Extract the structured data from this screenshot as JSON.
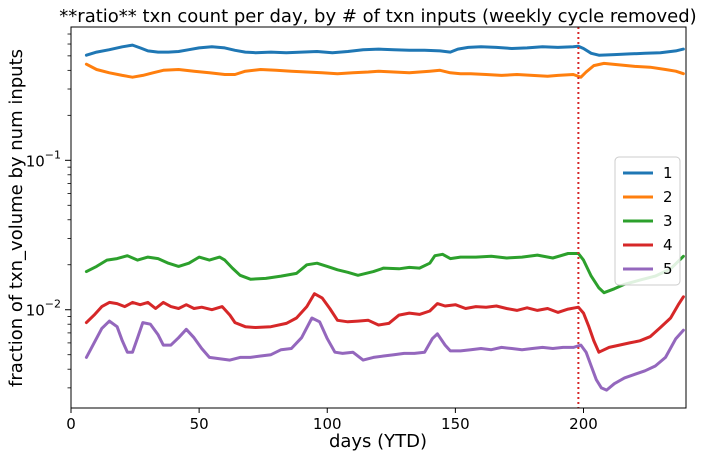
{
  "chart_data": {
    "type": "line",
    "title": "**ratio** txn count per day, by # of txn inputs (weekly cycle removed)",
    "xlabel": "days (YTD)",
    "ylabel": "fraction of txn_volume by num inputs",
    "xlim": [
      0,
      240
    ],
    "ylim": [
      0.0022,
      0.78
    ],
    "yscale": "log",
    "xticks": [
      0,
      50,
      100,
      150,
      200
    ],
    "xtick_labels": [
      "0",
      "50",
      "100",
      "150",
      "200"
    ],
    "yticks": [
      0.01,
      0.1
    ],
    "ytick_labels": [
      {
        "base": "10",
        "exp": "−2"
      },
      {
        "base": "10",
        "exp": "−1"
      }
    ],
    "grid": false,
    "legend_position": "right",
    "vline": {
      "x": 198,
      "color": "#d62728",
      "style": "dotted"
    },
    "series": [
      {
        "name": "1",
        "color": "#1f77b4",
        "points": [
          [
            6,
            0.505
          ],
          [
            10,
            0.53
          ],
          [
            15,
            0.55
          ],
          [
            20,
            0.575
          ],
          [
            24,
            0.59
          ],
          [
            27,
            0.565
          ],
          [
            30,
            0.54
          ],
          [
            34,
            0.53
          ],
          [
            38,
            0.53
          ],
          [
            42,
            0.535
          ],
          [
            46,
            0.55
          ],
          [
            50,
            0.565
          ],
          [
            55,
            0.575
          ],
          [
            60,
            0.565
          ],
          [
            64,
            0.545
          ],
          [
            68,
            0.53
          ],
          [
            72,
            0.525
          ],
          [
            78,
            0.53
          ],
          [
            84,
            0.525
          ],
          [
            90,
            0.53
          ],
          [
            96,
            0.535
          ],
          [
            102,
            0.525
          ],
          [
            108,
            0.535
          ],
          [
            114,
            0.55
          ],
          [
            120,
            0.555
          ],
          [
            126,
            0.55
          ],
          [
            132,
            0.545
          ],
          [
            138,
            0.545
          ],
          [
            144,
            0.54
          ],
          [
            148,
            0.53
          ],
          [
            151,
            0.555
          ],
          [
            155,
            0.57
          ],
          [
            160,
            0.575
          ],
          [
            166,
            0.57
          ],
          [
            172,
            0.56
          ],
          [
            178,
            0.565
          ],
          [
            184,
            0.575
          ],
          [
            190,
            0.57
          ],
          [
            196,
            0.575
          ],
          [
            198,
            0.58
          ],
          [
            200,
            0.56
          ],
          [
            203,
            0.52
          ],
          [
            206,
            0.505
          ],
          [
            212,
            0.51
          ],
          [
            218,
            0.515
          ],
          [
            224,
            0.52
          ],
          [
            230,
            0.525
          ],
          [
            236,
            0.54
          ],
          [
            239,
            0.555
          ]
        ]
      },
      {
        "name": "2",
        "color": "#ff7f0e",
        "points": [
          [
            6,
            0.44
          ],
          [
            10,
            0.405
          ],
          [
            15,
            0.385
          ],
          [
            20,
            0.37
          ],
          [
            24,
            0.36
          ],
          [
            28,
            0.37
          ],
          [
            32,
            0.385
          ],
          [
            36,
            0.4
          ],
          [
            42,
            0.405
          ],
          [
            48,
            0.395
          ],
          [
            54,
            0.385
          ],
          [
            60,
            0.375
          ],
          [
            64,
            0.375
          ],
          [
            68,
            0.395
          ],
          [
            74,
            0.405
          ],
          [
            80,
            0.4
          ],
          [
            86,
            0.395
          ],
          [
            92,
            0.39
          ],
          [
            98,
            0.385
          ],
          [
            104,
            0.38
          ],
          [
            110,
            0.385
          ],
          [
            116,
            0.39
          ],
          [
            120,
            0.395
          ],
          [
            126,
            0.39
          ],
          [
            132,
            0.385
          ],
          [
            136,
            0.39
          ],
          [
            140,
            0.395
          ],
          [
            144,
            0.4
          ],
          [
            148,
            0.385
          ],
          [
            152,
            0.38
          ],
          [
            156,
            0.38
          ],
          [
            162,
            0.375
          ],
          [
            168,
            0.37
          ],
          [
            174,
            0.375
          ],
          [
            180,
            0.37
          ],
          [
            186,
            0.365
          ],
          [
            190,
            0.37
          ],
          [
            196,
            0.375
          ],
          [
            199,
            0.36
          ],
          [
            201,
            0.39
          ],
          [
            204,
            0.43
          ],
          [
            208,
            0.445
          ],
          [
            214,
            0.435
          ],
          [
            220,
            0.425
          ],
          [
            226,
            0.42
          ],
          [
            232,
            0.405
          ],
          [
            236,
            0.395
          ],
          [
            239,
            0.38
          ]
        ]
      },
      {
        "name": "3",
        "color": "#2ca02c",
        "points": [
          [
            6,
            0.018
          ],
          [
            10,
            0.0195
          ],
          [
            14,
            0.0215
          ],
          [
            18,
            0.022
          ],
          [
            22,
            0.023
          ],
          [
            26,
            0.0215
          ],
          [
            30,
            0.0225
          ],
          [
            34,
            0.022
          ],
          [
            38,
            0.0205
          ],
          [
            42,
            0.0195
          ],
          [
            46,
            0.0205
          ],
          [
            50,
            0.0225
          ],
          [
            54,
            0.0215
          ],
          [
            58,
            0.0225
          ],
          [
            60,
            0.0215
          ],
          [
            63,
            0.019
          ],
          [
            66,
            0.017
          ],
          [
            70,
            0.016
          ],
          [
            76,
            0.0162
          ],
          [
            82,
            0.0168
          ],
          [
            88,
            0.0175
          ],
          [
            92,
            0.02
          ],
          [
            96,
            0.0205
          ],
          [
            100,
            0.0195
          ],
          [
            104,
            0.0185
          ],
          [
            108,
            0.0178
          ],
          [
            112,
            0.017
          ],
          [
            118,
            0.018
          ],
          [
            122,
            0.019
          ],
          [
            128,
            0.0188
          ],
          [
            132,
            0.0192
          ],
          [
            136,
            0.019
          ],
          [
            140,
            0.0205
          ],
          [
            142,
            0.023
          ],
          [
            145,
            0.0235
          ],
          [
            148,
            0.022
          ],
          [
            152,
            0.0225
          ],
          [
            158,
            0.0225
          ],
          [
            164,
            0.0228
          ],
          [
            170,
            0.0222
          ],
          [
            176,
            0.0225
          ],
          [
            182,
            0.0232
          ],
          [
            188,
            0.0222
          ],
          [
            194,
            0.0238
          ],
          [
            198,
            0.0238
          ],
          [
            200,
            0.0215
          ],
          [
            203,
            0.0168
          ],
          [
            206,
            0.014
          ],
          [
            208,
            0.013
          ],
          [
            212,
            0.0138
          ],
          [
            216,
            0.0148
          ],
          [
            222,
            0.0158
          ],
          [
            228,
            0.0168
          ],
          [
            234,
            0.0188
          ],
          [
            239,
            0.0228
          ]
        ]
      },
      {
        "name": "4",
        "color": "#d62728",
        "points": [
          [
            6,
            0.0082
          ],
          [
            9,
            0.0092
          ],
          [
            12,
            0.0105
          ],
          [
            15,
            0.0112
          ],
          [
            18,
            0.011
          ],
          [
            21,
            0.0105
          ],
          [
            24,
            0.0112
          ],
          [
            27,
            0.0108
          ],
          [
            30,
            0.0112
          ],
          [
            33,
            0.0102
          ],
          [
            36,
            0.0112
          ],
          [
            39,
            0.0105
          ],
          [
            42,
            0.0102
          ],
          [
            45,
            0.0108
          ],
          [
            48,
            0.0102
          ],
          [
            51,
            0.0104
          ],
          [
            55,
            0.01
          ],
          [
            59,
            0.0105
          ],
          [
            62,
            0.0092
          ],
          [
            64,
            0.0082
          ],
          [
            68,
            0.0077
          ],
          [
            72,
            0.0076
          ],
          [
            78,
            0.0077
          ],
          [
            84,
            0.0081
          ],
          [
            88,
            0.0088
          ],
          [
            92,
            0.0105
          ],
          [
            95,
            0.0128
          ],
          [
            98,
            0.012
          ],
          [
            101,
            0.0102
          ],
          [
            104,
            0.0085
          ],
          [
            108,
            0.0083
          ],
          [
            112,
            0.0084
          ],
          [
            116,
            0.0085
          ],
          [
            120,
            0.0079
          ],
          [
            124,
            0.0081
          ],
          [
            128,
            0.0092
          ],
          [
            132,
            0.0095
          ],
          [
            136,
            0.0093
          ],
          [
            140,
            0.0098
          ],
          [
            143,
            0.011
          ],
          [
            146,
            0.0106
          ],
          [
            150,
            0.0108
          ],
          [
            154,
            0.0102
          ],
          [
            158,
            0.0105
          ],
          [
            162,
            0.0104
          ],
          [
            166,
            0.0106
          ],
          [
            170,
            0.0102
          ],
          [
            174,
            0.0099
          ],
          [
            178,
            0.0103
          ],
          [
            182,
            0.0099
          ],
          [
            186,
            0.0102
          ],
          [
            190,
            0.0096
          ],
          [
            194,
            0.0101
          ],
          [
            198,
            0.0104
          ],
          [
            200,
            0.0095
          ],
          [
            202,
            0.0078
          ],
          [
            204,
            0.0062
          ],
          [
            206,
            0.0052
          ],
          [
            210,
            0.0056
          ],
          [
            214,
            0.0058
          ],
          [
            218,
            0.006
          ],
          [
            222,
            0.0062
          ],
          [
            226,
            0.0066
          ],
          [
            230,
            0.0076
          ],
          [
            234,
            0.0088
          ],
          [
            237,
            0.0108
          ],
          [
            239,
            0.0122
          ]
        ]
      },
      {
        "name": "5",
        "color": "#9467bd",
        "points": [
          [
            6,
            0.0048
          ],
          [
            9,
            0.006
          ],
          [
            12,
            0.0075
          ],
          [
            15,
            0.0084
          ],
          [
            18,
            0.0077
          ],
          [
            20,
            0.0062
          ],
          [
            22,
            0.0052
          ],
          [
            24,
            0.0052
          ],
          [
            26,
            0.0065
          ],
          [
            28,
            0.0082
          ],
          [
            31,
            0.008
          ],
          [
            34,
            0.0068
          ],
          [
            36,
            0.0058
          ],
          [
            39,
            0.0058
          ],
          [
            42,
            0.0065
          ],
          [
            45,
            0.0074
          ],
          [
            48,
            0.0065
          ],
          [
            51,
            0.0055
          ],
          [
            54,
            0.0048
          ],
          [
            58,
            0.0047
          ],
          [
            62,
            0.0046
          ],
          [
            66,
            0.0048
          ],
          [
            70,
            0.0048
          ],
          [
            74,
            0.0049
          ],
          [
            78,
            0.005
          ],
          [
            82,
            0.0054
          ],
          [
            86,
            0.0055
          ],
          [
            90,
            0.0065
          ],
          [
            94,
            0.0088
          ],
          [
            97,
            0.0083
          ],
          [
            100,
            0.0064
          ],
          [
            103,
            0.0052
          ],
          [
            106,
            0.0051
          ],
          [
            110,
            0.0052
          ],
          [
            114,
            0.0046
          ],
          [
            118,
            0.0048
          ],
          [
            122,
            0.0049
          ],
          [
            126,
            0.005
          ],
          [
            130,
            0.0051
          ],
          [
            134,
            0.0051
          ],
          [
            138,
            0.0052
          ],
          [
            141,
            0.0064
          ],
          [
            143,
            0.0069
          ],
          [
            146,
            0.0058
          ],
          [
            148,
            0.0053
          ],
          [
            152,
            0.0053
          ],
          [
            156,
            0.0054
          ],
          [
            160,
            0.0055
          ],
          [
            164,
            0.0054
          ],
          [
            168,
            0.0056
          ],
          [
            172,
            0.0055
          ],
          [
            176,
            0.0054
          ],
          [
            180,
            0.0055
          ],
          [
            184,
            0.0056
          ],
          [
            188,
            0.0055
          ],
          [
            192,
            0.0056
          ],
          [
            196,
            0.0056
          ],
          [
            199,
            0.0058
          ],
          [
            201,
            0.0052
          ],
          [
            203,
            0.0042
          ],
          [
            205,
            0.0034
          ],
          [
            207,
            0.003
          ],
          [
            209,
            0.0029
          ],
          [
            212,
            0.0032
          ],
          [
            216,
            0.0035
          ],
          [
            220,
            0.0037
          ],
          [
            224,
            0.0039
          ],
          [
            228,
            0.0042
          ],
          [
            232,
            0.0048
          ],
          [
            236,
            0.0064
          ],
          [
            239,
            0.0073
          ]
        ]
      }
    ]
  }
}
